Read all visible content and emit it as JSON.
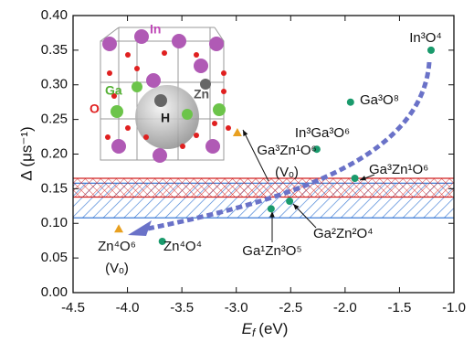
{
  "chart_data": {
    "type": "scatter",
    "y_label": "Δ (μs⁻¹)",
    "x_label": {
      "symbol": "E",
      "subscript": "f",
      "unit": "(eV)"
    },
    "xlim": [
      -4.5,
      -1.0
    ],
    "xticks": [
      -4.5,
      {
        "value": -4.0,
        "label": "-4.0"
      },
      -3.5,
      {
        "value": -3.0,
        "label": "-3.0"
      },
      -2.5,
      {
        "value": -2.0,
        "label": "-2.0"
      },
      -1.5,
      {
        "value": -1.0,
        "label": "-1.0"
      }
    ],
    "ylim": [
      0.0,
      0.4
    ],
    "yticks": [
      {
        "value": 0.0,
        "label": "0.00"
      },
      0.05,
      {
        "value": 0.1,
        "label": "0.10"
      },
      0.15,
      {
        "value": 0.2,
        "label": "0.20"
      },
      0.25,
      {
        "value": 0.3,
        "label": "0.30"
      },
      0.35,
      {
        "value": 0.4,
        "label": "0.40"
      }
    ],
    "series": [
      {
        "marker": "circle",
        "color": "#1a9a6c",
        "x": [
          -1.21,
          -1.95,
          -2.26,
          -1.91,
          -2.51,
          -2.68,
          -3.68
        ],
        "values": [
          0.35,
          0.275,
          0.207,
          0.165,
          0.132,
          0.121,
          0.074
        ],
        "labels": [
          [
            "In³O⁴"
          ],
          [
            "Ga³O⁸"
          ],
          [
            "In³Ga³O⁶"
          ],
          [
            "Ga³Zn¹O⁶"
          ],
          [
            "Ga²Zn²O⁴"
          ],
          [
            "Ga¹Zn³O⁵"
          ],
          [
            "Zn⁴O⁴"
          ]
        ]
      },
      {
        "marker": "triangle",
        "color": "#e8a020",
        "x": [
          -2.99,
          -4.08
        ],
        "values": [
          0.231,
          0.092
        ],
        "labels": [
          [
            "Ga³Zn¹O⁶",
            "(Vₒ)"
          ],
          [
            "Zn⁴O⁶",
            "(Vₒ)"
          ]
        ]
      }
    ],
    "bands": [
      {
        "color": "#2a6fd0",
        "pattern": "diagonal",
        "range": [
          0.108,
          0.158
        ]
      },
      {
        "color": "#d02020",
        "pattern": "crosshatch",
        "range": [
          0.138,
          0.165
        ]
      }
    ],
    "inset_labels": [
      "In",
      "Ga",
      "Zn",
      "O",
      "H"
    ]
  }
}
